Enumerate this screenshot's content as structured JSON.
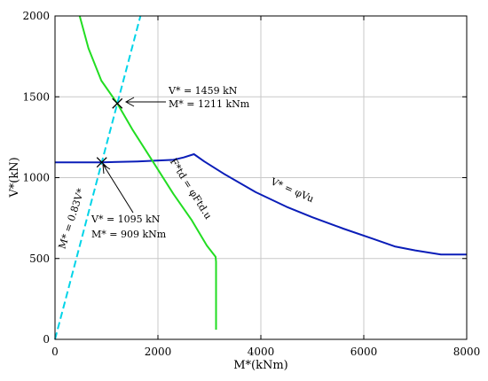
{
  "chart_data": {
    "type": "line",
    "xlabel": "M*(kNm)",
    "ylabel": "V*(kN)",
    "xlim": [
      0,
      8000
    ],
    "ylim": [
      0,
      2000
    ],
    "xticks": [
      0,
      2000,
      4000,
      6000,
      8000
    ],
    "yticks": [
      0,
      500,
      1000,
      1500,
      2000
    ],
    "grid": true,
    "series": [
      {
        "name": "V* = φVu",
        "color": "#0a1db8",
        "x": [
          0,
          900,
          1600,
          2300,
          2500,
          2700,
          2900,
          3300,
          3900,
          4500,
          5000,
          5600,
          6200,
          6600,
          7000,
          7500,
          8000
        ],
        "y": [
          1095,
          1095,
          1100,
          1110,
          1125,
          1145,
          1100,
          1020,
          910,
          820,
          755,
          685,
          620,
          575,
          550,
          525,
          525
        ]
      },
      {
        "name": "F*td = φFtd.u",
        "color": "#22dd22",
        "x": [
          480,
          650,
          900,
          1211,
          1500,
          1900,
          2300,
          2650,
          2950,
          3120,
          3130,
          3130
        ],
        "y": [
          2000,
          1800,
          1600,
          1459,
          1300,
          1100,
          900,
          740,
          580,
          510,
          480,
          60
        ]
      },
      {
        "name": "M* = 0.83V*",
        "color": "#00d4e8",
        "dash": true,
        "x": [
          0,
          1660
        ],
        "y": [
          0,
          2000
        ]
      }
    ],
    "annotations": {
      "upper_line1": "V* = 1459 kN",
      "upper_line2": "M* = 1211 kNm",
      "lower_line1": "V* = 1095 kN",
      "lower_line2": "M* = 909 kNm",
      "cyan_label": "M* = 0.83V*",
      "green_label": "F*td = φFtd.u",
      "blue_label": "V* = φVu"
    },
    "markers": [
      {
        "x": 1211,
        "y": 1459
      },
      {
        "x": 909,
        "y": 1095
      }
    ]
  }
}
